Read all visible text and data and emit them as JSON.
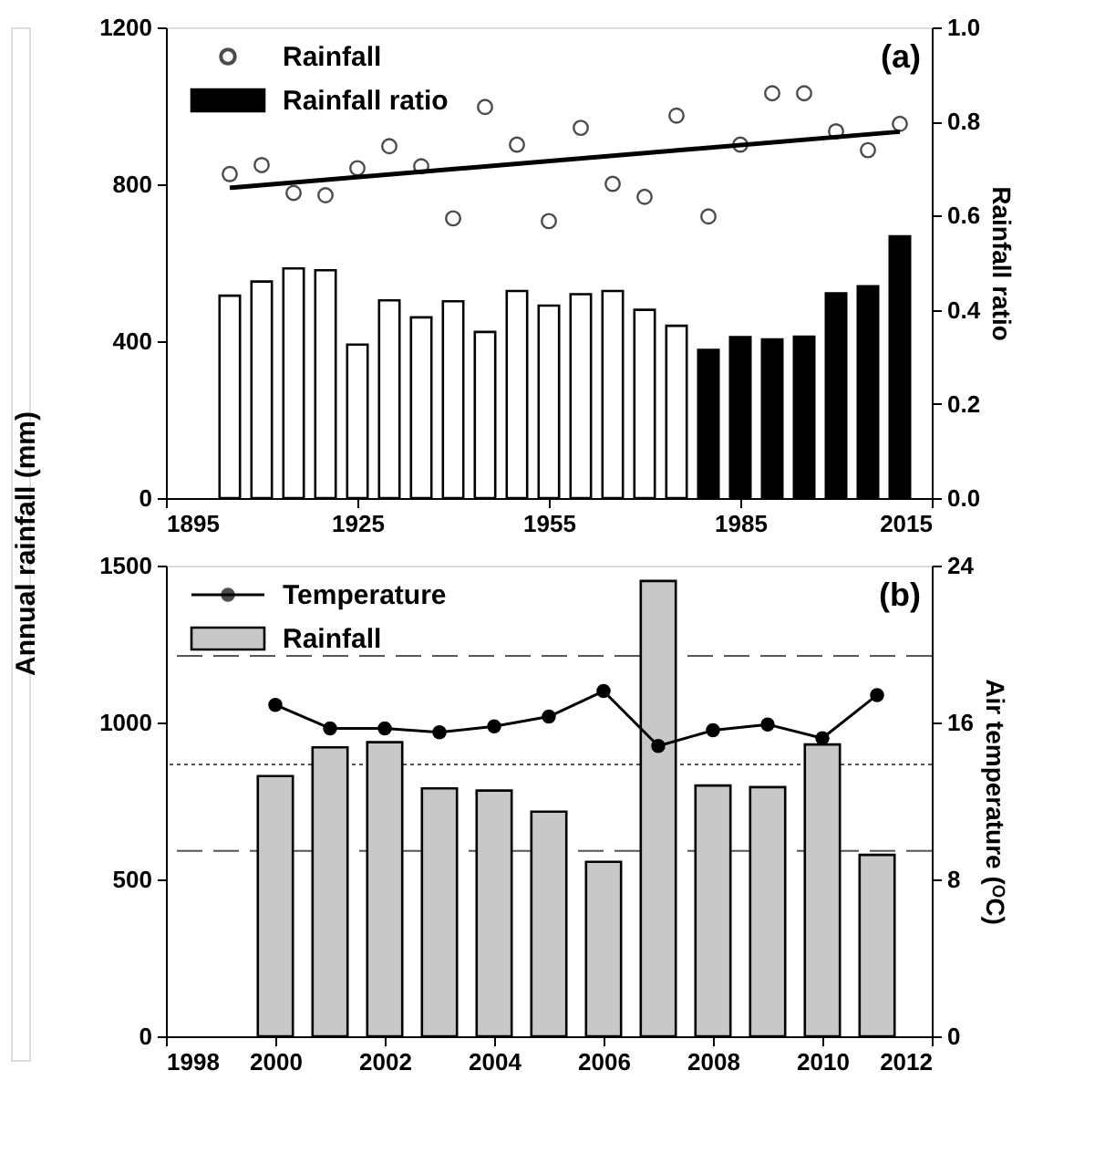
{
  "chart_data": [
    {
      "type": "bar",
      "ylabel": "Annual rainfall (mm)",
      "y2label": "Rainfall ratio",
      "annotations": [
        "(a)"
      ],
      "legend": "top left",
      "grid": false,
      "xlim": [
        1895,
        2015
      ],
      "xticks": [
        1895,
        1925,
        1955,
        1985,
        2015
      ],
      "ylim": [
        0,
        1200
      ],
      "yticks": [
        0,
        400,
        800,
        1200
      ],
      "y2lim": [
        0,
        1.0
      ],
      "y2ticks": [
        {
          "value": 0,
          "label": "0.0"
        },
        0.2,
        0.4,
        0.6,
        0.8,
        {
          "value": 1.0,
          "label": "1.0"
        }
      ],
      "series": [
        {
          "name": "Rainfall",
          "type": "scatter",
          "marker": "circle",
          "color": "#000000",
          "x": [
            1905,
            1910,
            1915,
            1920,
            1925,
            1930,
            1935,
            1940,
            1945,
            1950,
            1955,
            1960,
            1965,
            1970,
            1975,
            1980,
            1985,
            1990,
            1995,
            2000,
            2005,
            2010
          ],
          "values": [
            826,
            849,
            778,
            772,
            841,
            897,
            846,
            713,
            997,
            901,
            706,
            944,
            801,
            768,
            975,
            718,
            901,
            1032,
            1032,
            935,
            887,
            954
          ]
        },
        {
          "name": "Rainfall ratio",
          "axis": "y2",
          "color": "#000000",
          "colors": [
            "#ffffff",
            "#ffffff",
            "#ffffff",
            "#ffffff",
            "#ffffff",
            "#ffffff",
            "#ffffff",
            "#ffffff",
            "#ffffff",
            "#ffffff",
            "#ffffff",
            "#ffffff",
            "#ffffff",
            "#ffffff",
            "#ffffff",
            "#000000",
            "#000000",
            "#000000",
            "#000000",
            "#000000",
            "#000000",
            "#000000"
          ],
          "x": [
            1905,
            1910,
            1915,
            1920,
            1925,
            1930,
            1935,
            1940,
            1945,
            1950,
            1955,
            1960,
            1965,
            1970,
            1975,
            1980,
            1985,
            1990,
            1995,
            2000,
            2005,
            2010
          ],
          "values": [
            0.43,
            0.46,
            0.488,
            0.484,
            0.326,
            0.42,
            0.384,
            0.418,
            0.353,
            0.44,
            0.409,
            0.433,
            0.44,
            0.4,
            0.366,
            0.315,
            0.342,
            0.337,
            0.343,
            0.435,
            0.45,
            0.556
          ]
        },
        {
          "type": "line",
          "color": "#000000",
          "x": [
            1905,
            2010
          ],
          "values": [
            791,
            934
          ]
        }
      ]
    },
    {
      "type": "bar",
      "y2label": "Air temperature (ᴼC)",
      "annotations": [
        "(b)"
      ],
      "legend": "top left",
      "grid": false,
      "xlim": [
        1998,
        2012
      ],
      "xticks": [
        1998,
        2000,
        2002,
        2004,
        2006,
        2008,
        2010,
        2012
      ],
      "ylim": [
        0,
        1500
      ],
      "yticks": [
        0,
        500,
        1000,
        1500
      ],
      "y2lim": [
        0,
        24
      ],
      "y2ticks": [
        0,
        8,
        16,
        24
      ],
      "ref_lines": [
        {
          "axis": "y",
          "value": 1212,
          "color": "#555555",
          "line_style": "dashed"
        },
        {
          "axis": "y",
          "value": 866,
          "color": "#555555",
          "line_style": "dotted"
        },
        {
          "axis": "y",
          "value": 591,
          "color": "#555555",
          "line_style": "dashed"
        }
      ],
      "series": [
        {
          "name": "Temperature",
          "type": "line",
          "axis": "y2",
          "marker": "circle",
          "color": "#000000",
          "x": [
            2000,
            2001,
            2002,
            2003,
            2004,
            2005,
            2006,
            2007,
            2008,
            2009,
            2010,
            2011
          ],
          "values": [
            16.9,
            15.7,
            15.7,
            15.5,
            15.8,
            16.3,
            17.6,
            14.8,
            15.6,
            15.9,
            15.2,
            17.4
          ]
        },
        {
          "name": "Rainfall",
          "color": "#c8c8c8",
          "x": [
            2000,
            2001,
            2002,
            2003,
            2004,
            2005,
            2006,
            2007,
            2008,
            2009,
            2010,
            2011
          ],
          "values": [
            829,
            921,
            937,
            790,
            783,
            716,
            556,
            1451,
            799,
            794,
            930,
            578
          ]
        }
      ]
    }
  ]
}
